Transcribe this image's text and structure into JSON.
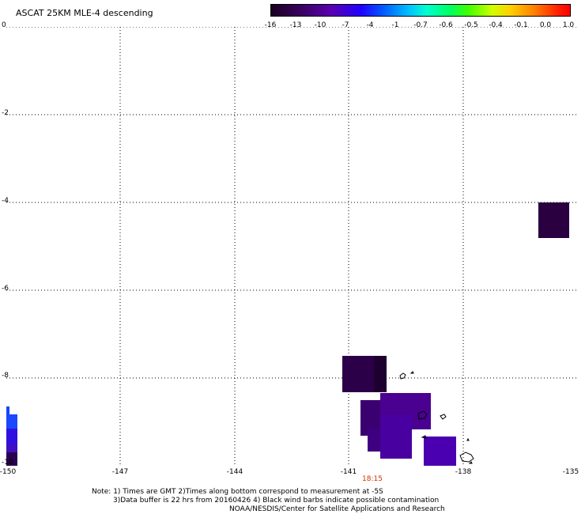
{
  "title": "ASCAT 25KM MLE-4 descending",
  "colorbar": {
    "ticks": [
      "-16",
      "-13",
      "-10",
      "-7",
      "-4",
      "-1",
      "-0.7",
      "-0.6",
      "-0.5",
      "-0.4",
      "-0.1",
      "0.0",
      "1.0"
    ]
  },
  "axes": {
    "lat_labels": [
      "0",
      "-2",
      "-4",
      "-6",
      "-8",
      "-10"
    ],
    "lon_labels": [
      "-150",
      "-147",
      "-144",
      "-141",
      "-138",
      "-135"
    ]
  },
  "time_label": "18:15",
  "notes": {
    "line1": "Note: 1) Times are GMT 2)Times along bottom correspond to measurement at -5S",
    "line2": "3)Data buffer is 22 hrs from 20160426 4) Black wind barbs indicate possible contamination",
    "line3": "NOAA/NESDIS/Center for Satellite Applications and Research"
  },
  "colors": {
    "grid": "#000000",
    "time_label": "#d03000",
    "cell_dark": "#2a0040",
    "cell_purple": "#4a00a0"
  }
}
